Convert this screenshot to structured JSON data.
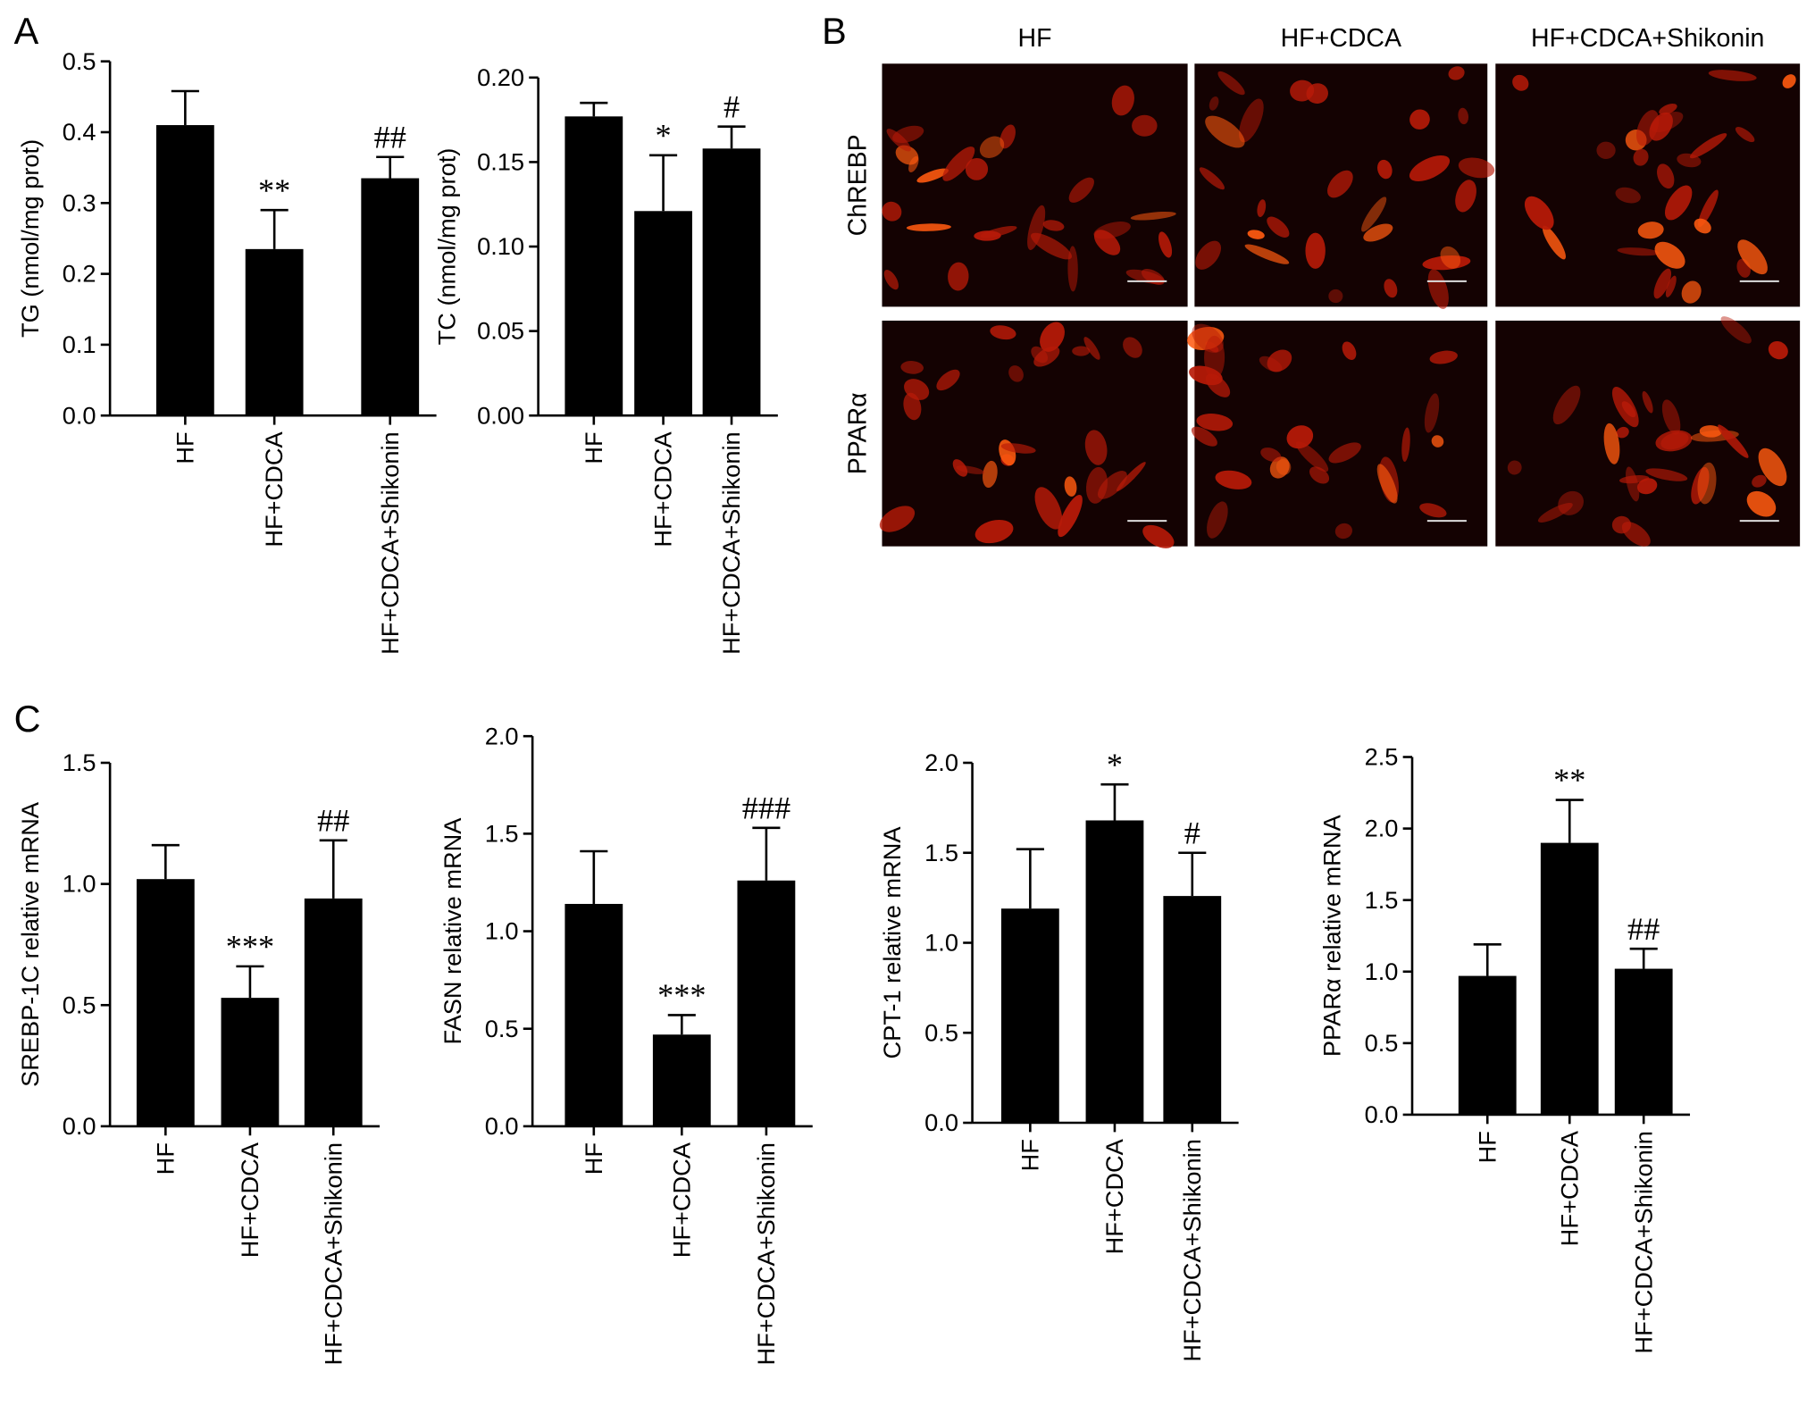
{
  "panel_labels": [
    "A",
    "B",
    "C"
  ],
  "micrographs": {
    "columns": [
      "HF",
      "HF+CDCA",
      "HF+CDCA+Shikonin"
    ],
    "rows": [
      "ChREBP",
      "PPARα"
    ]
  },
  "chart_data": [
    {
      "type": "bar",
      "ylabel": "TG (nmol/mg prot)",
      "categories": [
        "HF",
        "HF+CDCA",
        "HF+CDCA+Shikonin"
      ],
      "values": [
        0.41,
        0.235,
        0.335
      ],
      "errors": [
        0.048,
        0.055,
        0.03
      ],
      "annotations": [
        null,
        "**",
        "##"
      ],
      "color": "#000000",
      "ylim": [
        0,
        0.5
      ],
      "yticks": [
        {
          "value": 0,
          "label": "0.0"
        },
        0.1,
        0.2,
        0.3,
        0.4,
        0.5
      ]
    },
    {
      "type": "bar",
      "ylabel": "TC (nmol/mg prot)",
      "categories": [
        "HF",
        "HF+CDCA",
        "HF+CDCA+Shikonin"
      ],
      "values": [
        0.177,
        0.121,
        0.158
      ],
      "errors": [
        0.008,
        0.033,
        0.013
      ],
      "annotations": [
        null,
        "*",
        "#"
      ],
      "color": "#000000",
      "ylim": [
        0,
        0.2
      ],
      "yticks": [
        {
          "value": 0,
          "label": "0.00"
        },
        0.05,
        {
          "value": 0.1,
          "label": "0.10"
        },
        0.15,
        {
          "value": 0.2,
          "label": "0.20"
        }
      ]
    },
    {
      "type": "bar",
      "ylabel": "SREBP-1C relative mRNA",
      "categories": [
        "HF",
        "HF+CDCA",
        "HF+CDCA+Shikonin"
      ],
      "values": [
        1.02,
        0.53,
        0.94
      ],
      "errors": [
        0.14,
        0.13,
        0.24
      ],
      "annotations": [
        null,
        "***",
        "##"
      ],
      "color": "#000000",
      "ylim": [
        0,
        1.5
      ],
      "yticks": [
        {
          "value": 0,
          "label": "0.0"
        },
        0.5,
        {
          "value": 1,
          "label": "1.0"
        },
        1.5
      ]
    },
    {
      "type": "bar",
      "ylabel": "FASN relative mRNA",
      "categories": [
        "HF",
        "HF+CDCA",
        "HF+CDCA+Shikonin"
      ],
      "values": [
        1.14,
        0.47,
        1.26
      ],
      "errors": [
        0.27,
        0.1,
        0.27
      ],
      "annotations": [
        null,
        "***",
        "###"
      ],
      "color": "#000000",
      "ylim": [
        0,
        2
      ],
      "yticks": [
        {
          "value": 0,
          "label": "0.0"
        },
        0.5,
        {
          "value": 1,
          "label": "1.0"
        },
        1.5,
        {
          "value": 2,
          "label": "2.0"
        }
      ]
    },
    {
      "type": "bar",
      "ylabel": "CPT-1 relative mRNA",
      "categories": [
        "HF",
        "HF+CDCA",
        "HF+CDCA+Shikonin"
      ],
      "values": [
        1.19,
        1.68,
        1.26
      ],
      "errors": [
        0.33,
        0.2,
        0.24
      ],
      "annotations": [
        null,
        "*",
        "#"
      ],
      "color": "#000000",
      "ylim": [
        0,
        2
      ],
      "yticks": [
        {
          "value": 0,
          "label": "0.0"
        },
        0.5,
        {
          "value": 1,
          "label": "1.0"
        },
        1.5,
        {
          "value": 2,
          "label": "2.0"
        }
      ]
    },
    {
      "type": "bar",
      "ylabel": "PPARα relative mRNA",
      "categories": [
        "HF",
        "HF+CDCA",
        "HF+CDCA+Shikonin"
      ],
      "values": [
        0.97,
        1.9,
        1.02
      ],
      "errors": [
        0.22,
        0.3,
        0.14
      ],
      "annotations": [
        null,
        "**",
        "##"
      ],
      "color": "#000000",
      "ylim": [
        0,
        2.5
      ],
      "yticks": [
        {
          "value": 0,
          "label": "0.0"
        },
        0.5,
        {
          "value": 1,
          "label": "1.0"
        },
        1.5,
        {
          "value": 2,
          "label": "2.0"
        },
        2.5
      ]
    }
  ]
}
